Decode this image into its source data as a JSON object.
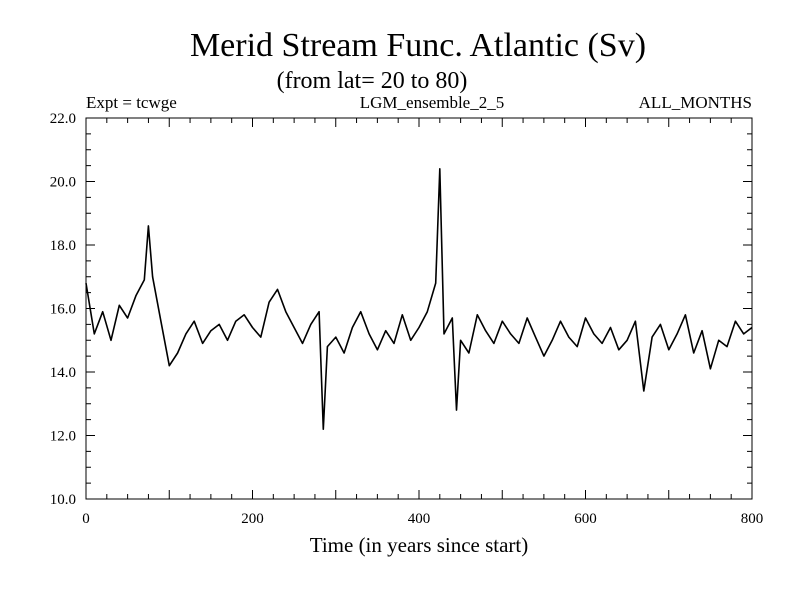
{
  "chart_data": {
    "type": "line",
    "title": "Merid Stream Func. Atlantic (Sv)",
    "subtitle": "(from lat= 20 to 80)",
    "header_left": "Expt = tcwge",
    "header_center": "LGM_ensemble_2_5",
    "header_right": "ALL_MONTHS",
    "xlabel": "Time (in years since start)",
    "ylabel": "",
    "xlim": [
      0,
      800
    ],
    "ylim": [
      10,
      22
    ],
    "x_ticks": [
      "0",
      "200",
      "400",
      "600",
      "800"
    ],
    "y_ticks": [
      "10.0",
      "12.0",
      "14.0",
      "16.0",
      "18.0",
      "20.0",
      "22.0"
    ],
    "grid": false,
    "line_color": "#000000",
    "series": [
      {
        "x": [
          0,
          10,
          20,
          30,
          40,
          50,
          60,
          70,
          75,
          80,
          90,
          100,
          110,
          120,
          130,
          140,
          150,
          160,
          170,
          180,
          190,
          200,
          210,
          220,
          230,
          240,
          250,
          260,
          270,
          280,
          285,
          290,
          300,
          310,
          320,
          330,
          340,
          350,
          360,
          370,
          380,
          390,
          400,
          410,
          420,
          425,
          430,
          440,
          445,
          450,
          460,
          470,
          480,
          490,
          500,
          510,
          520,
          530,
          540,
          550,
          560,
          570,
          580,
          590,
          600,
          610,
          620,
          630,
          640,
          650,
          660,
          670,
          680,
          690,
          700,
          710,
          720,
          730,
          740,
          750,
          760,
          770,
          780,
          790,
          800
        ],
        "y": [
          16.8,
          15.2,
          15.9,
          15.0,
          16.1,
          15.7,
          16.4,
          16.9,
          18.6,
          17.0,
          15.6,
          14.2,
          14.6,
          15.2,
          15.6,
          14.9,
          15.3,
          15.5,
          15.0,
          15.6,
          15.8,
          15.4,
          15.1,
          16.2,
          16.6,
          15.9,
          15.4,
          14.9,
          15.5,
          15.9,
          12.2,
          14.8,
          15.1,
          14.6,
          15.4,
          15.9,
          15.2,
          14.7,
          15.3,
          14.9,
          15.8,
          15.0,
          15.4,
          15.9,
          16.8,
          20.4,
          15.2,
          15.7,
          12.8,
          15.0,
          14.6,
          15.8,
          15.3,
          14.9,
          15.6,
          15.2,
          14.9,
          15.7,
          15.1,
          14.5,
          15.0,
          15.6,
          15.1,
          14.8,
          15.7,
          15.2,
          14.9,
          15.4,
          14.7,
          15.0,
          15.6,
          13.4,
          15.1,
          15.5,
          14.7,
          15.2,
          15.8,
          14.6,
          15.3,
          14.1,
          15.0,
          14.8,
          15.6,
          15.2,
          15.4
        ]
      }
    ]
  }
}
